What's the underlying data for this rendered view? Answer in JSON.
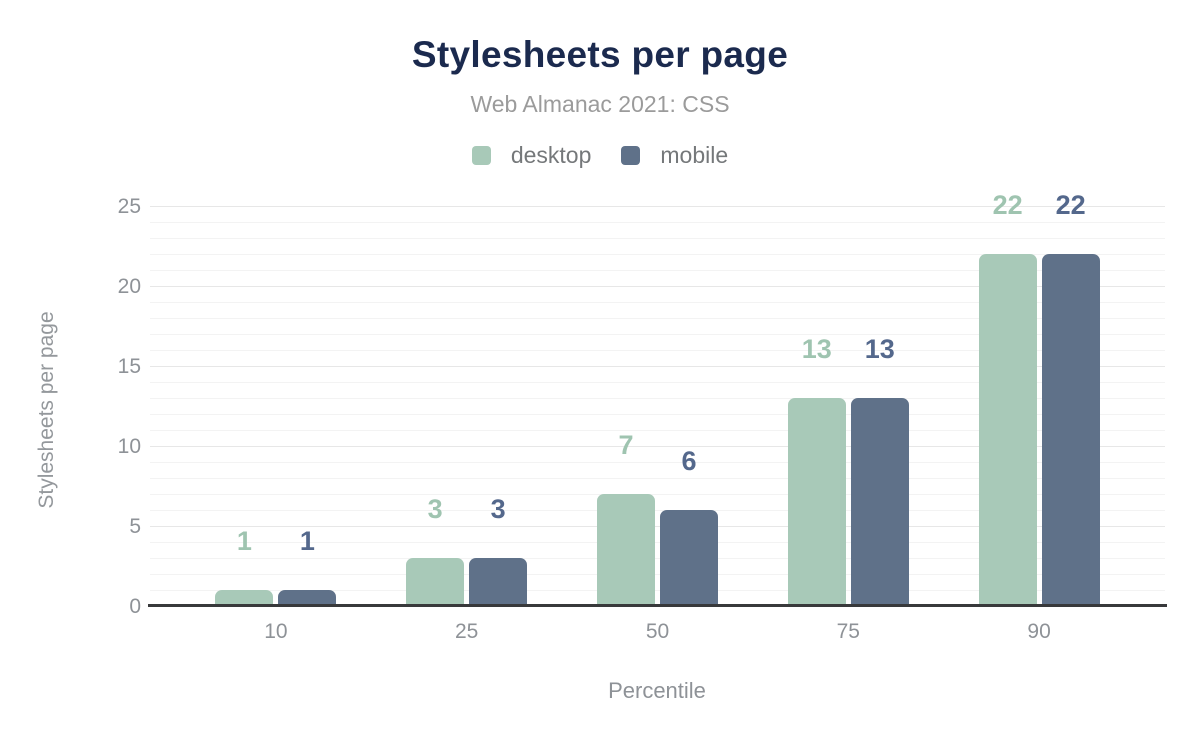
{
  "header": {
    "title": "Stylesheets per page",
    "subtitle": "Web Almanac 2021: CSS"
  },
  "axes": {
    "x_title": "Percentile",
    "y_title": "Stylesheets per page"
  },
  "colors": {
    "title_text": "#1b2a4e",
    "subtitle_text": "#9b9b9b",
    "axis_text": "#8e9297",
    "legend_text": "#75787a",
    "desktop": "#a8c9b8",
    "desktop_label": "#9fc4b0",
    "mobile": "#5f7189",
    "mobile_label": "#54688c",
    "grid_minor": "#f3f3f3",
    "grid_major": "#e7e7e7",
    "baseline": "#38393b"
  },
  "chart_data": {
    "type": "bar",
    "title": "Stylesheets per page",
    "subtitle": "Web Almanac 2021: CSS",
    "categories": [
      "10",
      "25",
      "50",
      "75",
      "90"
    ],
    "series": [
      {
        "name": "desktop",
        "color": "#a8c9b8",
        "label_color": "#9fc4b0",
        "values": [
          1,
          3,
          7,
          13,
          22
        ]
      },
      {
        "name": "mobile",
        "color": "#5f7189",
        "label_color": "#54688c",
        "values": [
          1,
          3,
          6,
          13,
          22
        ]
      }
    ],
    "xlabel": "Percentile",
    "ylabel": "Stylesheets per page",
    "ylim": [
      0,
      25
    ],
    "yticks": [
      0,
      5,
      10,
      15,
      20,
      25
    ],
    "minor_grid_step": 1,
    "grid": "on",
    "legend_position": "top",
    "data_labels": true
  }
}
